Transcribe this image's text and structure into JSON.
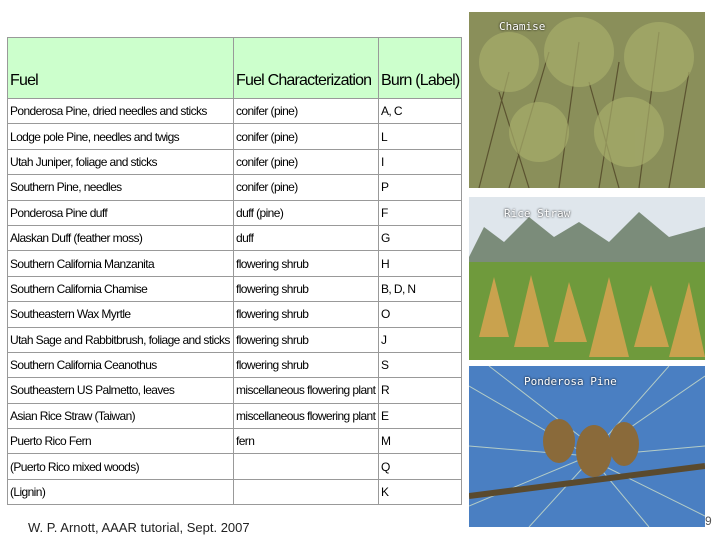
{
  "table": {
    "header": [
      "Fuel",
      "Fuel Characterization",
      "Burn (Label)"
    ],
    "rows": [
      {
        "fuel": "Ponderosa Pine, dried needles and sticks",
        "characterization": "conifer (pine)",
        "burn": "A, C"
      },
      {
        "fuel": "Lodge pole Pine, needles and twigs",
        "characterization": "conifer (pine)",
        "burn": "L"
      },
      {
        "fuel": "Utah Juniper, foliage and sticks",
        "characterization": "conifer (pine)",
        "burn": "I"
      },
      {
        "fuel": "Southern Pine, needles",
        "characterization": "conifer (pine)",
        "burn": "P"
      },
      {
        "fuel": "Ponderosa Pine duff",
        "characterization": "duff (pine)",
        "burn": "F"
      },
      {
        "fuel": "Alaskan Duff (feather moss)",
        "characterization": "duff",
        "burn": "G"
      },
      {
        "fuel": "Southern California Manzanita",
        "characterization": "flowering shrub",
        "burn": "H"
      },
      {
        "fuel": "Southern California Chamise",
        "characterization": "flowering shrub",
        "burn": "B, D, N"
      },
      {
        "fuel": "Southeastern Wax Myrtle",
        "characterization": "flowering shrub",
        "burn": "O"
      },
      {
        "fuel": "Utah Sage and Rabbitbrush, foliage and sticks",
        "characterization": "flowering shrub",
        "burn": "J"
      },
      {
        "fuel": "Southern California Ceanothus",
        "characterization": "flowering shrub",
        "burn": "S"
      },
      {
        "fuel": "Southeastern US Palmetto, leaves",
        "characterization": "miscellaneous flowering plant",
        "burn": "R"
      },
      {
        "fuel": "Asian Rice Straw (Taiwan)",
        "characterization": "miscellaneous flowering plant",
        "burn": "E"
      },
      {
        "fuel": "Puerto Rico Fern",
        "characterization": "fern",
        "burn": "M"
      },
      {
        "fuel": "(Puerto Rico mixed woods)",
        "burn": "Q"
      },
      {
        "fuel": "(Lignin)",
        "burn": "K"
      }
    ]
  },
  "photos": [
    {
      "label": "Chamise"
    },
    {
      "label": "Rice Straw"
    },
    {
      "label": "Ponderosa Pine"
    }
  ],
  "footer": "W. P. Arnott, AAAR tutorial, Sept. 2007",
  "page_number": "9"
}
